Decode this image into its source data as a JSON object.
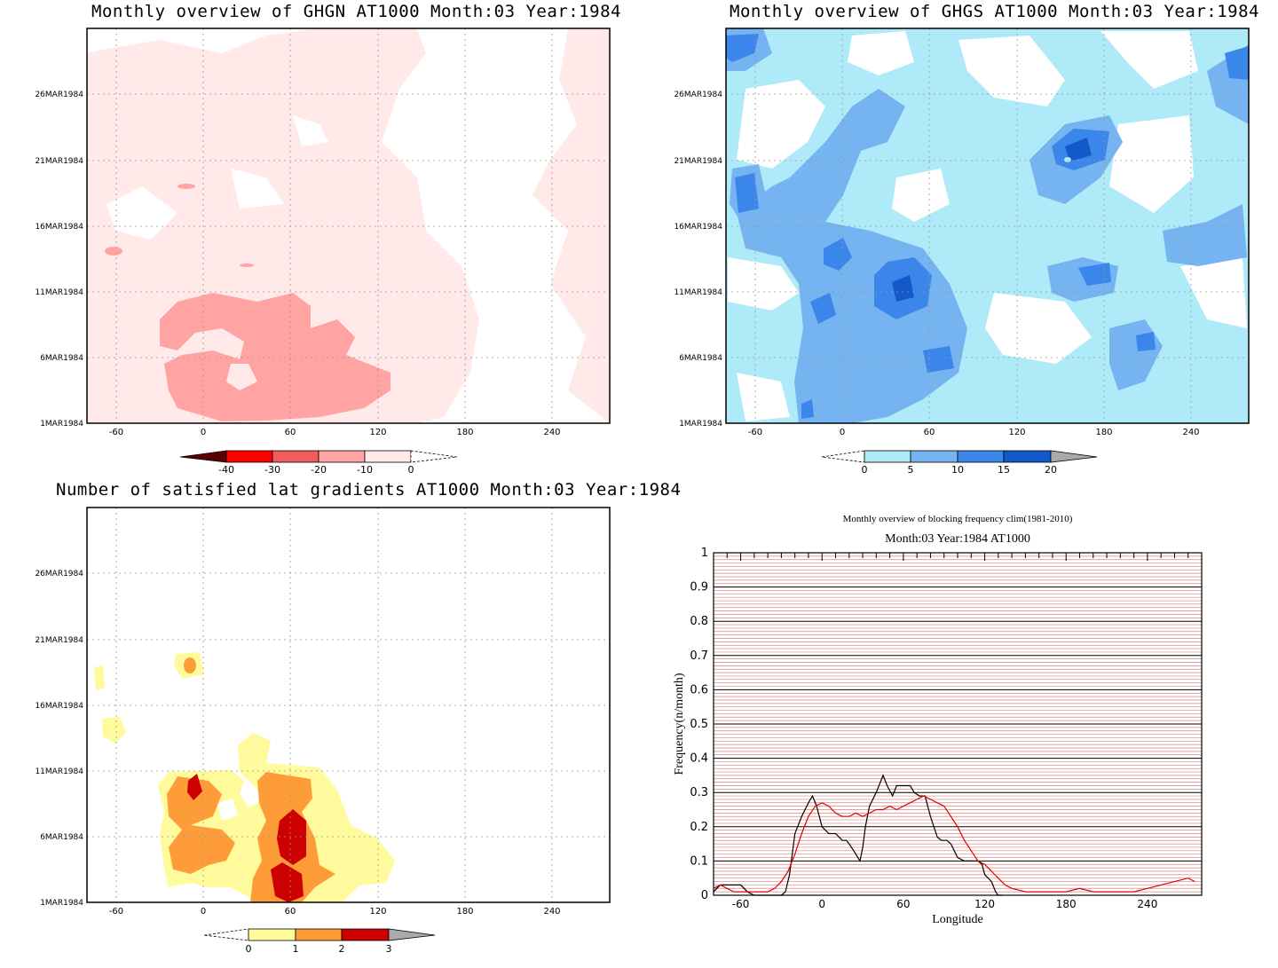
{
  "panels": [
    {
      "title": "Monthly overview of GHGN AT1000 Month:03 Year:1984",
      "yticks": [
        "26MAR1984",
        "21MAR1984",
        "16MAR1984",
        "11MAR1984",
        "6MAR1984",
        "1MAR1984"
      ],
      "xticks": [
        "-60",
        "0",
        "60",
        "120",
        "180",
        "240"
      ],
      "colorbar": {
        "labels": [
          "-40",
          "-30",
          "-20",
          "-10",
          "0"
        ],
        "colors": [
          "#5a0000",
          "#ff0000",
          "#f25c5c",
          "#ffa3a3",
          "#ffe9e9"
        ]
      }
    },
    {
      "title": "Monthly overview of GHGS AT1000 Month:03 Year:1984",
      "yticks": [
        "26MAR1984",
        "21MAR1984",
        "16MAR1984",
        "11MAR1984",
        "6MAR1984",
        "1MAR1984"
      ],
      "xticks": [
        "-60",
        "0",
        "60",
        "120",
        "180",
        "240"
      ],
      "colorbar": {
        "labels": [
          "0",
          "5",
          "10",
          "15",
          "20"
        ],
        "colors": [
          "#aeeaf7",
          "#76b3f1",
          "#3a86ea",
          "#1558c9",
          "#aaaaaa"
        ]
      }
    },
    {
      "title": "Number of satisfied lat gradients AT1000 Month:03 Year:1984",
      "yticks": [
        "26MAR1984",
        "21MAR1984",
        "16MAR1984",
        "11MAR1984",
        "6MAR1984",
        "1MAR1984"
      ],
      "xticks": [
        "-60",
        "0",
        "60",
        "120",
        "180",
        "240"
      ],
      "colorbar": {
        "labels": [
          "0",
          "1",
          "2",
          "3"
        ],
        "colors": [
          "#fffb9c",
          "#ff9c3a",
          "#cc0000",
          "#aaaaaa"
        ]
      }
    }
  ],
  "line_panel": {
    "title": "Monthly overview of blocking frequency clim(1981-2010)",
    "subtitle": "Month:03 Year:1984  AT1000",
    "ylabel": "Frequency(n/month)",
    "xlabel": "Longitude",
    "yticks": [
      "0",
      "0.1",
      "0.2",
      "0.3",
      "0.4",
      "0.5",
      "0.6",
      "0.7",
      "0.8",
      "0.9",
      "1"
    ],
    "xticks": [
      "-60",
      "0",
      "60",
      "120",
      "180",
      "240"
    ]
  },
  "chart_data": {
    "type": "line",
    "xlim": [
      -80,
      280
    ],
    "ylim": [
      0,
      1
    ],
    "grid": true,
    "series": [
      {
        "color": "#000000",
        "x": [
          -80,
          -75,
          -72,
          -60,
          -55,
          -50,
          -45,
          -40,
          -35,
          -30,
          -27,
          -24,
          -20,
          -15,
          -10,
          -7,
          -4,
          0,
          5,
          10,
          15,
          18,
          20,
          25,
          28,
          30,
          32,
          35,
          40,
          45,
          48,
          52,
          55,
          60,
          65,
          68,
          72,
          76,
          80,
          85,
          88,
          92,
          95,
          100,
          105,
          110,
          115,
          118,
          120,
          125,
          128,
          130,
          133
        ],
        "y": [
          0.01,
          0.03,
          0.03,
          0.03,
          0.01,
          0.0,
          0.0,
          0.0,
          0.0,
          0.0,
          0.01,
          0.06,
          0.18,
          0.23,
          0.27,
          0.29,
          0.26,
          0.2,
          0.18,
          0.18,
          0.16,
          0.16,
          0.15,
          0.12,
          0.1,
          0.14,
          0.2,
          0.26,
          0.3,
          0.35,
          0.32,
          0.29,
          0.32,
          0.32,
          0.32,
          0.3,
          0.29,
          0.29,
          0.23,
          0.17,
          0.16,
          0.16,
          0.15,
          0.11,
          0.1,
          0.1,
          0.1,
          0.09,
          0.06,
          0.04,
          0.01,
          0.0,
          0.0
        ]
      },
      {
        "color": "#e00000",
        "x": [
          -80,
          -75,
          -70,
          -65,
          -60,
          -55,
          -50,
          -45,
          -40,
          -35,
          -30,
          -25,
          -20,
          -15,
          -10,
          -5,
          0,
          5,
          10,
          15,
          20,
          25,
          30,
          35,
          40,
          45,
          50,
          55,
          60,
          65,
          70,
          75,
          80,
          85,
          90,
          95,
          100,
          105,
          110,
          115,
          120,
          125,
          130,
          135,
          140,
          150,
          160,
          170,
          180,
          190,
          200,
          210,
          220,
          230,
          240,
          250,
          260,
          270,
          275
        ],
        "y": [
          0.02,
          0.03,
          0.02,
          0.01,
          0.01,
          0.01,
          0.01,
          0.01,
          0.01,
          0.02,
          0.04,
          0.07,
          0.12,
          0.18,
          0.23,
          0.26,
          0.27,
          0.26,
          0.24,
          0.23,
          0.23,
          0.24,
          0.23,
          0.24,
          0.25,
          0.25,
          0.26,
          0.25,
          0.26,
          0.27,
          0.28,
          0.29,
          0.28,
          0.27,
          0.26,
          0.23,
          0.2,
          0.16,
          0.13,
          0.1,
          0.09,
          0.07,
          0.05,
          0.03,
          0.02,
          0.01,
          0.01,
          0.01,
          0.01,
          0.02,
          0.01,
          0.01,
          0.01,
          0.01,
          0.02,
          0.03,
          0.04,
          0.05,
          0.04
        ]
      }
    ]
  }
}
